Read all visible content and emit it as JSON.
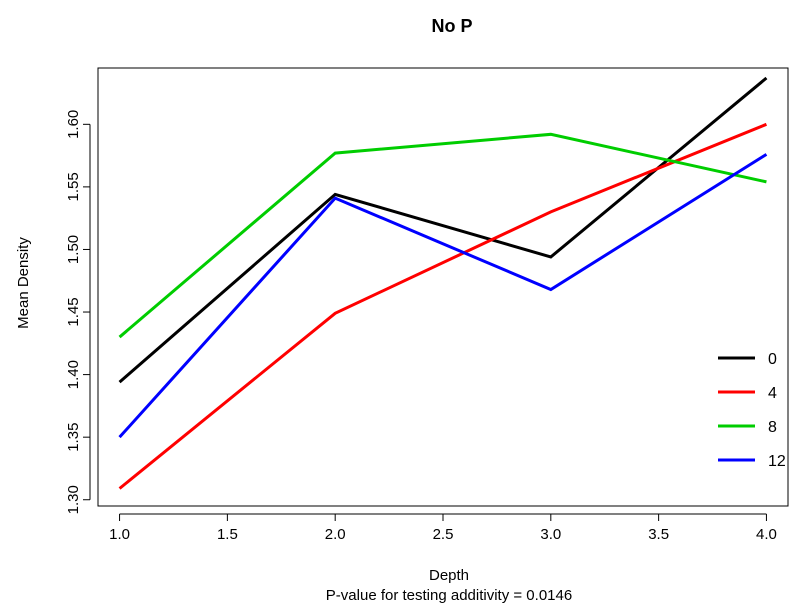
{
  "chart_data": {
    "type": "line",
    "title": "No P",
    "xlabel": "Depth",
    "ylabel": "Mean Density",
    "subtitle": "P-value for testing additivity = 0.0146",
    "x": [
      1.0,
      2.0,
      3.0,
      4.0
    ],
    "xlim": [
      0.9,
      4.1
    ],
    "ylim": [
      1.295,
      1.645
    ],
    "xticks": [
      "1.0",
      "1.5",
      "2.0",
      "2.5",
      "3.0",
      "3.5",
      "4.0"
    ],
    "yticks": [
      "1.30",
      "1.35",
      "1.40",
      "1.45",
      "1.50",
      "1.55",
      "1.60"
    ],
    "legend_position": "bottom-right",
    "grid": false,
    "series": [
      {
        "name": "0",
        "color": "#000000",
        "values": [
          1.394,
          1.544,
          1.494,
          1.637
        ]
      },
      {
        "name": "4",
        "color": "#ff0000",
        "values": [
          1.309,
          1.449,
          1.53,
          1.6
        ]
      },
      {
        "name": "8",
        "color": "#00cd00",
        "values": [
          1.43,
          1.577,
          1.592,
          1.554
        ]
      },
      {
        "name": "12",
        "color": "#0000ff",
        "values": [
          1.35,
          1.541,
          1.468,
          1.576
        ]
      }
    ]
  }
}
